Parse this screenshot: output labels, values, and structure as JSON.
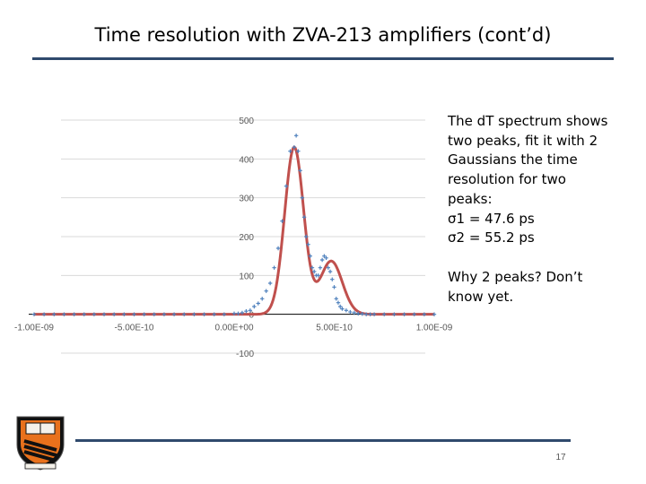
{
  "slide": {
    "title": "Time resolution with ZVA-213 amplifiers (cont’d)",
    "page_number": "17"
  },
  "text_block": {
    "lines": [
      "The dT spectrum shows",
      "two peaks, fit it with 2",
      "Gaussians the time",
      "resolution for two",
      "peaks:",
      "σ1 = 47.6 ps",
      "σ2 = 55.2 ps"
    ],
    "question_lines": [
      "Why 2 peaks? Don’t",
      "know yet."
    ]
  },
  "colors": {
    "title_rule": "#2f4a6d",
    "fit_line": "#c0504d",
    "data_points": "#4f81bd",
    "gridline": "#d9d9d9",
    "tick_text": "#595959"
  },
  "chart_data": {
    "type": "scatter",
    "title": "",
    "xlabel": "",
    "ylabel": "",
    "xlim": [
      -1e-09,
      1e-09
    ],
    "ylim": [
      -100,
      500
    ],
    "x_ticks": [
      -1e-09,
      -5e-10,
      0,
      5e-10,
      1e-09
    ],
    "x_tick_labels": [
      "-1.00E-09",
      "-5.00E-10",
      "0.00E+00",
      "5.00E-10",
      "1.00E-09"
    ],
    "y_ticks": [
      -100,
      0,
      100,
      200,
      300,
      400,
      500
    ],
    "y_tick_labels": [
      "-100",
      "0",
      "100",
      "200",
      "300",
      "400",
      "500"
    ],
    "grid": true,
    "legend": "none",
    "series": [
      {
        "kind": "points",
        "marker": "plus",
        "x": [
          -1e-09,
          -9.5e-10,
          -9e-10,
          -8.5e-10,
          -8e-10,
          -7.5e-10,
          -7e-10,
          -6.5e-10,
          -6e-10,
          -5.5e-10,
          -5e-10,
          -4.5e-10,
          -4e-10,
          -3.5e-10,
          -3e-10,
          -2.5e-10,
          -2e-10,
          -1.5e-10,
          -1e-10,
          -5e-11,
          0,
          2e-11,
          4e-11,
          6e-11,
          8e-11,
          1e-10,
          1.2e-10,
          1.4e-10,
          1.6e-10,
          1.8e-10,
          2e-10,
          2.2e-10,
          2.4e-10,
          2.6e-10,
          2.8e-10,
          3e-10,
          3.1e-10,
          3.2e-10,
          3.3e-10,
          3.4e-10,
          3.5e-10,
          3.6e-10,
          3.7e-10,
          3.8e-10,
          3.9e-10,
          4e-10,
          4.1e-10,
          4.2e-10,
          4.3e-10,
          4.4e-10,
          4.5e-10,
          4.6e-10,
          4.7e-10,
          4.8e-10,
          4.9e-10,
          5e-10,
          5.1e-10,
          5.2e-10,
          5.3e-10,
          5.4e-10,
          5.6e-10,
          5.8e-10,
          6e-10,
          6.2e-10,
          6.4e-10,
          6.6e-10,
          6.8e-10,
          7e-10,
          7.5e-10,
          8e-10,
          8.5e-10,
          9e-10,
          9.5e-10,
          1e-09
        ],
        "y": [
          0,
          0,
          0,
          0,
          0,
          0,
          0,
          0,
          0,
          0,
          0,
          0,
          0,
          0,
          0,
          0,
          0,
          0,
          0,
          0,
          2,
          2,
          4,
          8,
          10,
          20,
          28,
          40,
          60,
          80,
          120,
          170,
          240,
          330,
          420,
          430,
          460,
          420,
          370,
          300,
          250,
          200,
          180,
          150,
          120,
          110,
          100,
          100,
          120,
          140,
          150,
          145,
          120,
          110,
          90,
          70,
          40,
          30,
          20,
          14,
          10,
          6,
          4,
          2,
          1,
          0,
          0,
          0,
          0,
          0,
          0,
          0,
          0,
          0
        ]
      },
      {
        "kind": "fit_line",
        "name": "",
        "components": [
          {
            "amplitude": 430,
            "mean_s": 3e-10,
            "sigma_s": 4.76e-11
          },
          {
            "amplitude": 137,
            "mean_s": 4.85e-10,
            "sigma_s": 5.52e-11
          }
        ]
      }
    ]
  }
}
